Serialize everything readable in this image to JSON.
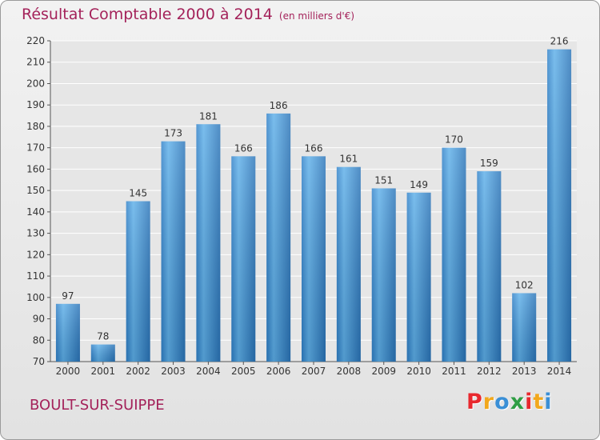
{
  "title": "Résultat Comptable 2000 à 2014",
  "subtitle": "(en milliers d'€)",
  "location": "BOULT-SUR-SUIPPE",
  "brand": {
    "letters": [
      "P",
      "r",
      "o",
      "x",
      "i",
      "t",
      "i"
    ],
    "colors": [
      "#e8282e",
      "#f2a81d",
      "#3a8fd6",
      "#2f9e44",
      "#e8282e",
      "#f2a81d",
      "#3a8fd6"
    ]
  },
  "colors": {
    "bar": "#3a8fd6",
    "bar_light": "#5dafe9",
    "bar_dark": "#2a74b8",
    "title": "#a4225a",
    "grid": "#ffffff"
  },
  "chart_data": {
    "type": "bar",
    "categories": [
      "2000",
      "2001",
      "2002",
      "2003",
      "2004",
      "2005",
      "2006",
      "2007",
      "2008",
      "2009",
      "2010",
      "2011",
      "2012",
      "2013",
      "2014"
    ],
    "values": [
      97,
      78,
      145,
      173,
      181,
      166,
      186,
      166,
      161,
      151,
      149,
      170,
      159,
      102,
      216
    ],
    "data_labels": [
      "97",
      "78",
      "145",
      "173",
      "181",
      "166",
      "186",
      "166",
      "161",
      "151",
      "149",
      "170",
      "159",
      "102",
      "216"
    ],
    "y_ticks": [
      "70",
      "80",
      "90",
      "100",
      "110",
      "120",
      "130",
      "140",
      "150",
      "160",
      "170",
      "180",
      "190",
      "200",
      "210",
      "220"
    ],
    "ylim": [
      70,
      220
    ],
    "grid": true,
    "legend": "none"
  }
}
